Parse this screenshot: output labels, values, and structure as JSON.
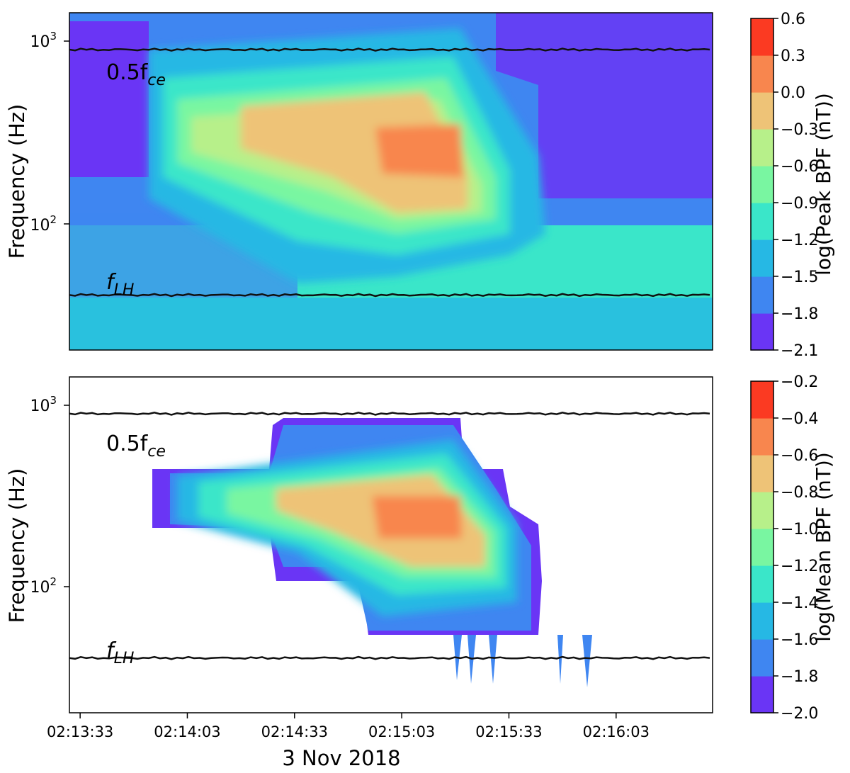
{
  "figure": {
    "date_label": "3 Nov 2018"
  },
  "chart_data": [
    {
      "type": "heatmap",
      "panel": "top",
      "ylabel": "Frequency (Hz)",
      "yscale": "log",
      "ylim": [
        20,
        1400
      ],
      "y_ticks": [
        {
          "value": 100,
          "base": "10",
          "exp": "2"
        },
        {
          "value": 1000,
          "base": "10",
          "exp": "3"
        }
      ],
      "xlim": [
        "02:13:30",
        "02:16:30"
      ],
      "x_ticks": [
        "02:13:33",
        "02:14:03",
        "02:14:33",
        "02:15:03",
        "02:15:33",
        "02:16:03"
      ],
      "colorbar": {
        "label": "log(Peak BPF (nT))",
        "range": [
          -2.1,
          0.6
        ],
        "ticks": [
          "0.6",
          "0.3",
          "0.0",
          "−0.3",
          "−0.6",
          "−0.9",
          "−1.2",
          "−1.5",
          "−1.8",
          "−2.1"
        ]
      },
      "reference_lines": [
        {
          "label": "0.5f",
          "subscript": "ce",
          "frequency_hz": 880
        },
        {
          "label": "f",
          "subscript": "LH",
          "frequency_hz": 40
        }
      ]
    },
    {
      "type": "heatmap",
      "panel": "bottom",
      "ylabel": "Frequency (Hz)",
      "yscale": "log",
      "ylim": [
        20,
        1400
      ],
      "y_ticks": [
        {
          "value": 100,
          "base": "10",
          "exp": "2"
        },
        {
          "value": 1000,
          "base": "10",
          "exp": "3"
        }
      ],
      "xlim": [
        "02:13:30",
        "02:16:30"
      ],
      "x_ticks": [
        "02:13:33",
        "02:14:03",
        "02:14:33",
        "02:15:03",
        "02:15:33",
        "02:16:03"
      ],
      "colorbar": {
        "label": "log(Mean BPF (nT))",
        "range": [
          -2.0,
          -0.2
        ],
        "ticks": [
          "−0.2",
          "−0.4",
          "−0.6",
          "−0.8",
          "−1.0",
          "−1.2",
          "−1.4",
          "−1.6",
          "−1.8",
          "−2.0"
        ]
      },
      "reference_lines": [
        {
          "label": "0.5f",
          "subscript": "ce",
          "frequency_hz": 880
        },
        {
          "label": "f",
          "subscript": "LH",
          "frequency_hz": 40
        }
      ]
    }
  ],
  "colors": {
    "levels": [
      "#6a35f5",
      "#3f86f1",
      "#26b8e4",
      "#3ae6c9",
      "#79f6a1",
      "#b7f08a",
      "#eec377",
      "#f8864e",
      "#fb3a22"
    ],
    "line": "#111111"
  }
}
